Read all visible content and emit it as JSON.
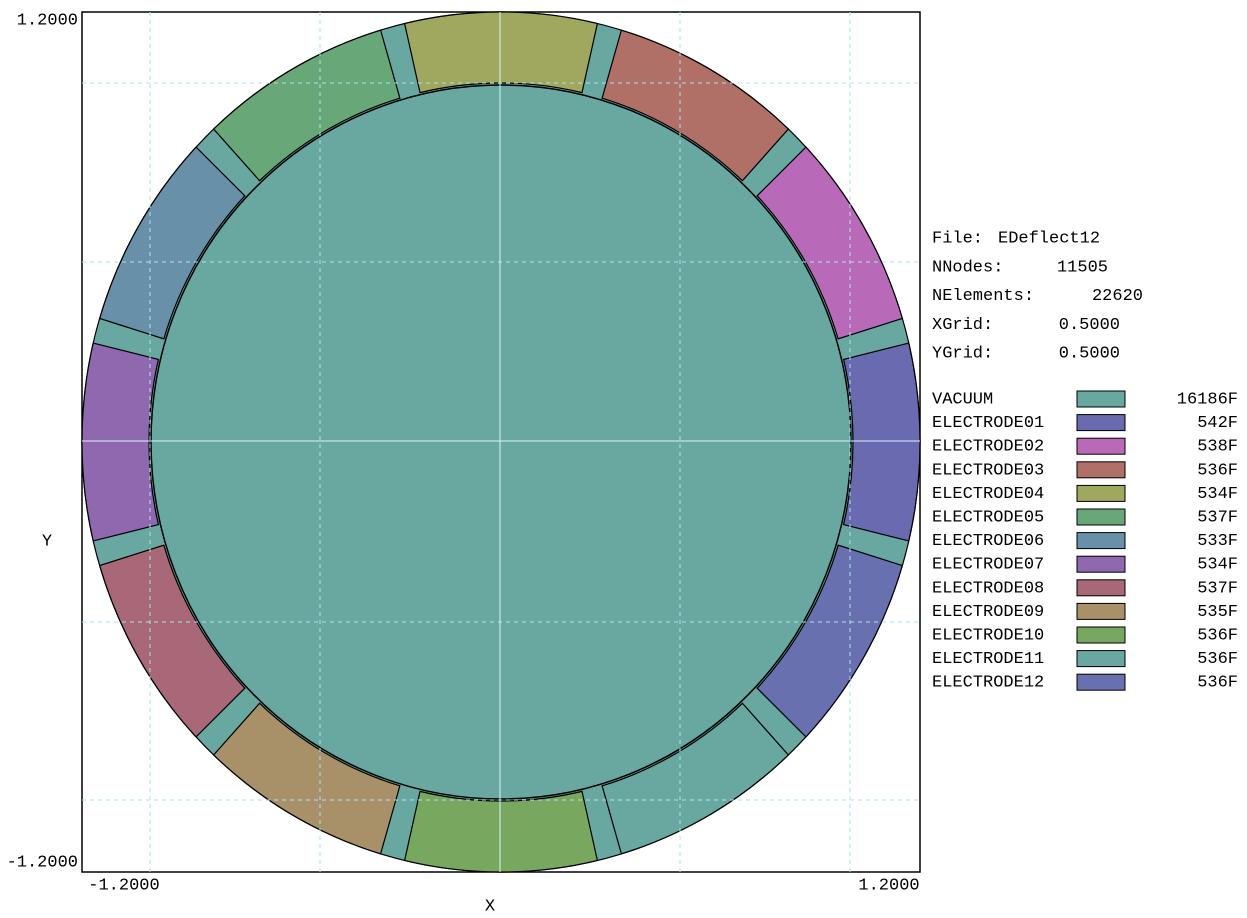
{
  "plot": {
    "x_axis": {
      "label": "X",
      "min_label": "-1.2000",
      "max_label": "1.2000"
    },
    "y_axis": {
      "label": "Y",
      "min_label": "-1.2000",
      "max_label": "1.2000"
    }
  },
  "info": [
    {
      "label": "File:",
      "value": "EDeflect12"
    },
    {
      "label": "NNodes:",
      "value": "11505"
    },
    {
      "label": "NElements:",
      "value": "22620"
    },
    {
      "label": "XGrid:",
      "value": "0.5000"
    },
    {
      "label": "YGrid:",
      "value": "0.5000"
    }
  ],
  "legend": [
    {
      "name": "VACUUM",
      "color": "#68a8a0",
      "count": "16186F"
    },
    {
      "name": "ELECTRODE01",
      "color": "#6a6ab0",
      "count": "542F"
    },
    {
      "name": "ELECTRODE02",
      "color": "#b86ab8",
      "count": "538F"
    },
    {
      "name": "ELECTRODE03",
      "color": "#b07068",
      "count": "536F"
    },
    {
      "name": "ELECTRODE04",
      "color": "#a0a860",
      "count": "534F"
    },
    {
      "name": "ELECTRODE05",
      "color": "#68a878",
      "count": "537F"
    },
    {
      "name": "ELECTRODE06",
      "color": "#6890a8",
      "count": "533F"
    },
    {
      "name": "ELECTRODE07",
      "color": "#9068b0",
      "count": "534F"
    },
    {
      "name": "ELECTRODE08",
      "color": "#a86878",
      "count": "537F"
    },
    {
      "name": "ELECTRODE09",
      "color": "#a89068",
      "count": "535F"
    },
    {
      "name": "ELECTRODE10",
      "color": "#78a860",
      "count": "536F"
    },
    {
      "name": "ELECTRODE11",
      "color": "#68a8a0",
      "count": "536F"
    },
    {
      "name": "ELECTRODE12",
      "color": "#6870b0",
      "count": "536F"
    }
  ]
}
